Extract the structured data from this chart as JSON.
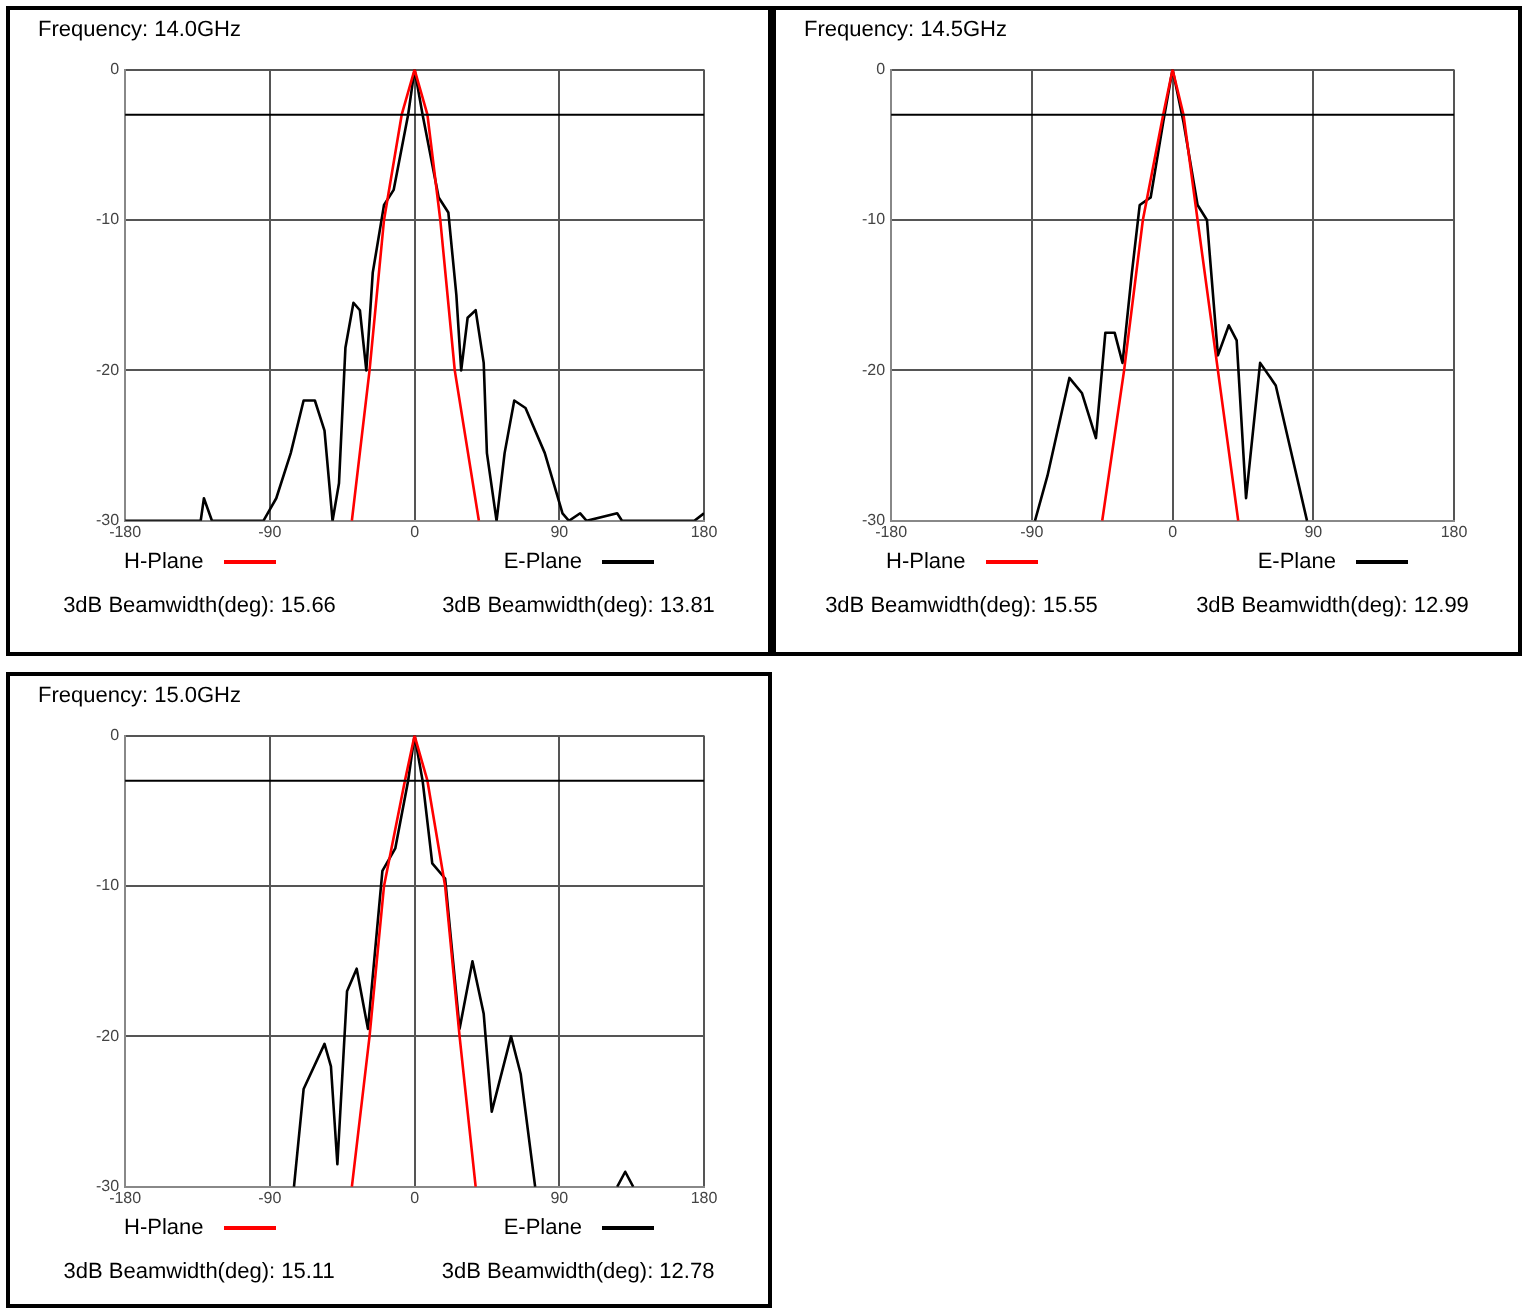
{
  "chart_data": [
    {
      "type": "line",
      "title": "Frequency: 14.0GHz",
      "xlim": [
        -180,
        180
      ],
      "xticks": [
        -180,
        -90,
        0,
        90,
        180
      ],
      "ylim": [
        -30,
        0
      ],
      "yticks": [
        0,
        -10,
        -20,
        -30
      ],
      "grid": true,
      "legend": "bottom",
      "ref_lines": [
        {
          "axis": "y",
          "value": -3,
          "color": "#000000"
        }
      ],
      "annotations": [
        "3dB Beamwidth(deg): 15.66",
        "3dB Beamwidth(deg): 13.81"
      ],
      "series": [
        {
          "name": "H-Plane",
          "color": "#ff0000",
          "x": [
            -39,
            -28,
            -19,
            -8,
            0,
            8,
            16,
            25,
            40
          ],
          "values": [
            -30,
            -20,
            -10,
            -3,
            0,
            -3,
            -10,
            -20,
            -30
          ]
        },
        {
          "name": "E-Plane",
          "color": "#000000",
          "x": [
            -180,
            -133,
            -131,
            -126,
            -116,
            -94,
            -86,
            -77,
            -69,
            -62,
            -56,
            -51,
            -47,
            -43,
            -38,
            -34,
            -30,
            -26,
            -19,
            -13,
            -4,
            0,
            5,
            15,
            21,
            26,
            29,
            33,
            38,
            43,
            45,
            51,
            56,
            62,
            69,
            81,
            92,
            96,
            103,
            107,
            126,
            129,
            174,
            180
          ],
          "values": [
            -30,
            -30,
            -28.5,
            -30,
            -30,
            -30,
            -28.5,
            -25.5,
            -22,
            -22,
            -24,
            -30,
            -27.5,
            -18.5,
            -15.5,
            -16,
            -20,
            -13.5,
            -9,
            -8,
            -3,
            0,
            -3,
            -8.5,
            -9.5,
            -15,
            -20,
            -16.5,
            -16,
            -19.5,
            -25.5,
            -30,
            -25.5,
            -22,
            -22.5,
            -25.5,
            -29.5,
            -30,
            -29.5,
            -30,
            -29.5,
            -30,
            -30,
            -29.5
          ]
        }
      ]
    },
    {
      "type": "line",
      "title": "Frequency: 14.5GHz",
      "xlim": [
        -180,
        180
      ],
      "xticks": [
        -180,
        -90,
        0,
        90,
        180
      ],
      "ylim": [
        -30,
        0
      ],
      "yticks": [
        0,
        -10,
        -20,
        -30
      ],
      "grid": true,
      "legend": "bottom",
      "ref_lines": [
        {
          "axis": "y",
          "value": -3,
          "color": "#000000"
        }
      ],
      "annotations": [
        "3dB Beamwidth(deg): 15.55",
        "3dB Beamwidth(deg): 12.99"
      ],
      "series": [
        {
          "name": "H-Plane",
          "color": "#ff0000",
          "x": [
            -45,
            -31,
            -19,
            -6,
            0,
            7,
            16,
            29,
            42
          ],
          "values": [
            -30,
            -20,
            -10,
            -3,
            0,
            -3,
            -10,
            -20,
            -30
          ]
        },
        {
          "name": "E-Plane",
          "color": "#000000",
          "x": [
            -88,
            -80,
            -66,
            -58,
            -49,
            -43,
            -37,
            -32,
            -26,
            -21,
            -14,
            -6,
            0,
            7,
            16,
            22,
            29,
            36,
            41,
            47,
            56,
            66,
            86
          ],
          "values": [
            -30,
            -27,
            -20.5,
            -21.5,
            -24.5,
            -17.5,
            -17.5,
            -19.5,
            -13.5,
            -9,
            -8.5,
            -3.5,
            0,
            -3.5,
            -9,
            -10,
            -19,
            -17,
            -18,
            -28.5,
            -19.5,
            -21,
            -30
          ]
        }
      ]
    },
    {
      "type": "line",
      "title": "Frequency: 15.0GHz",
      "xlim": [
        -180,
        180
      ],
      "xticks": [
        -180,
        -90,
        0,
        90,
        180
      ],
      "ylim": [
        -30,
        0
      ],
      "yticks": [
        0,
        -10,
        -20,
        -30
      ],
      "grid": true,
      "legend": "bottom",
      "ref_lines": [
        {
          "axis": "y",
          "value": -3,
          "color": "#000000"
        }
      ],
      "annotations": [
        "3dB Beamwidth(deg): 15.11",
        "3dB Beamwidth(deg): 12.78"
      ],
      "series": [
        {
          "name": "H-Plane",
          "color": "#ff0000",
          "x": [
            -39,
            -28,
            -19,
            -6,
            0,
            8,
            19,
            28,
            38
          ],
          "values": [
            -30,
            -20,
            -10,
            -3,
            0,
            -3,
            -10,
            -20,
            -30
          ]
        },
        {
          "name": "E-Plane",
          "color": "#000000",
          "x": [
            -75,
            -69,
            -56,
            -52,
            -48,
            -42,
            -36,
            -29,
            -20,
            -12,
            -4,
            0,
            5,
            11,
            19,
            28,
            36,
            43,
            48,
            60,
            66,
            75,
            100,
            126,
            131,
            136
          ],
          "values": [
            -30,
            -23.5,
            -20.5,
            -22,
            -28.5,
            -17,
            -15.5,
            -19.5,
            -9,
            -7.5,
            -3,
            0,
            -3,
            -8.5,
            -9.5,
            -19.5,
            -15,
            -18.5,
            -25,
            -20,
            -22.5,
            -30,
            null,
            -30,
            -29,
            -30
          ]
        }
      ]
    }
  ]
}
